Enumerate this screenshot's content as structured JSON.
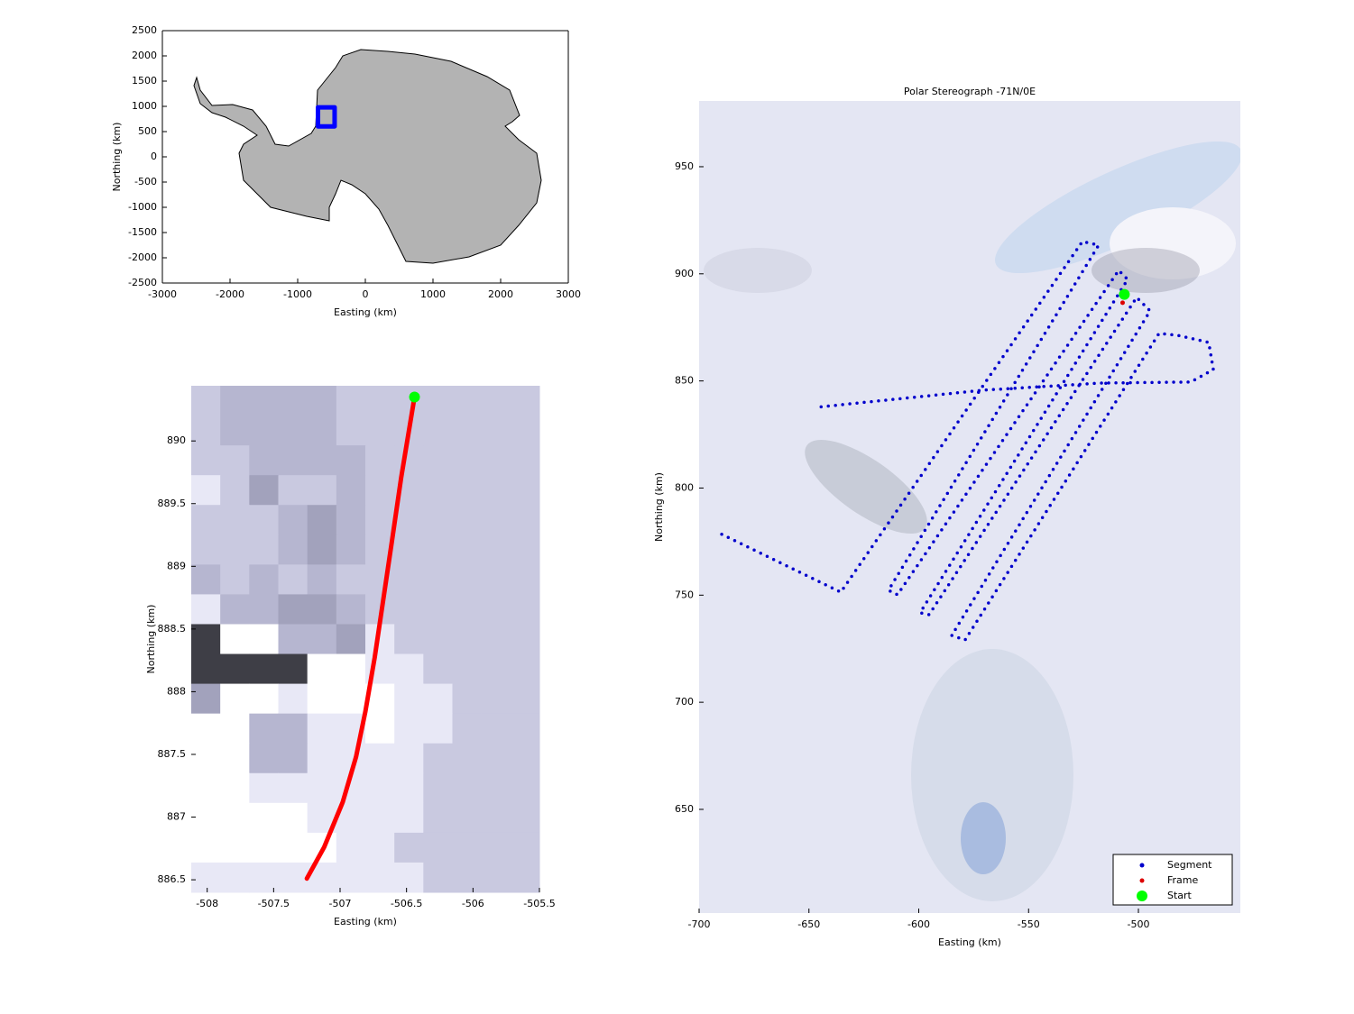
{
  "chart_data": [
    {
      "type": "map",
      "xlabel": "Easting (km)",
      "ylabel": "Northing (km)",
      "xlim": [
        -3000,
        3000
      ],
      "ylim": [
        -2500,
        2500
      ],
      "xticks": [
        -3000,
        -2000,
        -1000,
        0,
        1000,
        2000,
        3000
      ],
      "yticks": [
        -2500,
        -2000,
        -1500,
        -1000,
        -500,
        0,
        500,
        1000,
        1500,
        2000,
        2500
      ],
      "box": true,
      "series": [
        {
          "color": "#0000ff",
          "style": "thick-line",
          "x": [
            -700,
            -454,
            -454,
            -700,
            -700
          ],
          "y": [
            602,
            602,
            981,
            981,
            602
          ]
        }
      ]
    },
    {
      "type": "map",
      "xlabel": "Easting (km)",
      "ylabel": "Northing (km)",
      "xlim": [
        -508.12,
        -505.5
      ],
      "ylim": [
        886.4,
        890.44
      ],
      "xticks": [
        -508,
        -507.5,
        -507,
        -506.5,
        -506,
        -505.5
      ],
      "yticks": [
        886.5,
        887,
        887.5,
        888,
        888.5,
        889,
        889.5,
        890
      ],
      "box": false,
      "series": [
        {
          "color": "#ff0000",
          "style": "thick-line",
          "x": [
            -507.25,
            -507.12,
            -506.98,
            -506.88,
            -506.81,
            -506.74,
            -506.67,
            -506.61,
            -506.54,
            -506.44
          ],
          "y": [
            886.51,
            886.76,
            887.12,
            887.48,
            887.84,
            888.27,
            888.77,
            889.2,
            889.71,
            890.35
          ]
        },
        {
          "color": "#00ff00",
          "style": "dot-large",
          "x": [
            -506.44
          ],
          "y": [
            890.35
          ]
        }
      ]
    },
    {
      "type": "map",
      "title": "Polar Stereograph -71N/0E",
      "xlabel": "Easting (km)",
      "ylabel": "Northing (km)",
      "xlim": [
        -700,
        -453.6
      ],
      "ylim": [
        601.6,
        980.7
      ],
      "xticks": [
        -700,
        -650,
        -600,
        -550,
        -500
      ],
      "yticks": [
        650,
        700,
        750,
        800,
        850,
        900,
        950
      ],
      "box": false,
      "legend": "lower right",
      "series": [
        {
          "name": "Segment",
          "color": "#0000cc",
          "style": "dotted",
          "x": [
            -689.7,
            -635.5,
            -525.5,
            -518.1,
            -613.8,
            -609.7,
            -509.0,
            -504.9,
            -599.4,
            -595.3,
            -500.8,
            -494.7,
            -585.0,
            -578.9,
            -490.6,
            -482.3,
            -468.0,
            -465.9,
            -476.2,
            -517.3,
            -570.6,
            -646.6
          ],
          "y": [
            778.4,
            751.4,
            915.1,
            913.4,
            752.3,
            750.2,
            901.6,
            897.4,
            741.8,
            740.9,
            889.0,
            882.7,
            731.2,
            729.1,
            872.2,
            871.3,
            868.0,
            855.3,
            849.5,
            849.0,
            845.7,
            837.7
          ]
        },
        {
          "name": "Frame",
          "color": "#dd0000",
          "style": "dot-small",
          "x": [
            -507.2
          ],
          "y": [
            886.5
          ]
        },
        {
          "name": "Start",
          "color": "#00ff00",
          "style": "dot-large",
          "x": [
            -506.4
          ],
          "y": [
            890.4
          ]
        }
      ]
    }
  ]
}
